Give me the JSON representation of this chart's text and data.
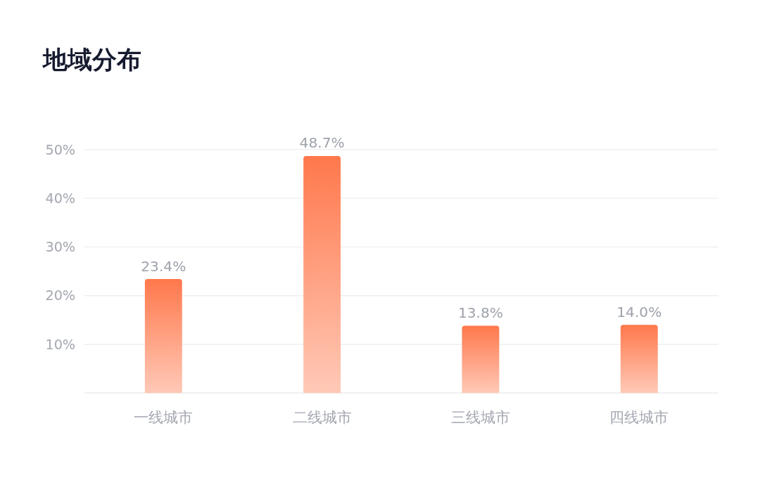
{
  "chart_data": {
    "type": "bar",
    "title": "地域分布",
    "categories": [
      "一线城市",
      "二线城市",
      "三线城市",
      "四线城市"
    ],
    "values": [
      23.4,
      48.7,
      13.8,
      14.0
    ],
    "value_labels": [
      "23.4%",
      "48.7%",
      "13.8%",
      "14.0%"
    ],
    "color": "#ff784c",
    "ylim": [
      0,
      50
    ],
    "yticks": [
      {
        "value": 0,
        "label": null
      },
      {
        "value": 10,
        "label": "10%"
      },
      {
        "value": 20,
        "label": "20%"
      },
      {
        "value": 30,
        "label": "30%"
      },
      {
        "value": 40,
        "label": "40%"
      },
      {
        "value": 50,
        "label": "50%"
      }
    ],
    "grid": true
  }
}
